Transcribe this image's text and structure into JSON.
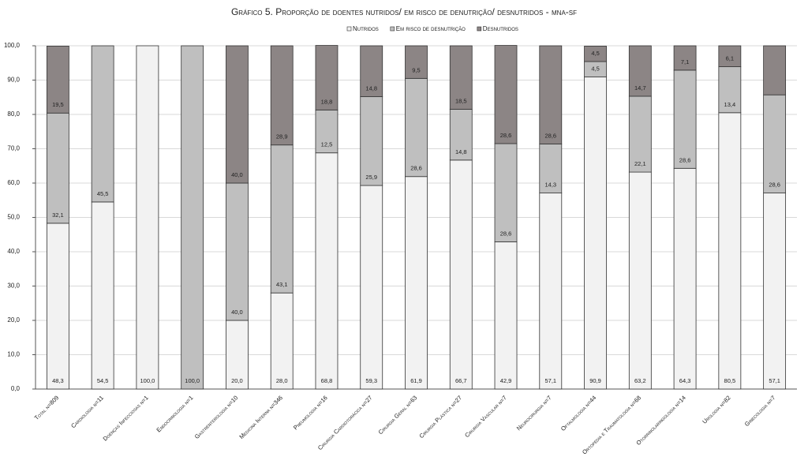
{
  "chart_data": {
    "type": "stacked_bar",
    "title": "Gráfico 5. Proporção de doentes nutridos/ em risco de denutrição/ desnutridos - mna-sf",
    "categories": [
      "Total n=809",
      "Cardiologia n=11",
      "Doenças Infecciosas n=1",
      "Endocrinologia n=1",
      "Gastrenterologia n=10",
      "Medicina Interna n=346",
      "Pneumologia n=16",
      "Cirurgia Cardiotorácica n=27",
      "Cirurgia Geral n=63",
      "Cirurgia Plástica n=27",
      "Cirurgia Vascular n=7",
      "Neurocirurgia n=7",
      "Oftalmologia n=44",
      "Ortopedia e Traumatologia n=68",
      "Otorrinolaringologia n=14",
      "Urologia n=82",
      "Ginecologia n=7"
    ],
    "series": [
      {
        "name": "Nutridos",
        "color": "#f2f2f2",
        "values": [
          48.3,
          54.5,
          100,
          null,
          20,
          28,
          68.8,
          59.3,
          61.9,
          66.7,
          42.9,
          57.1,
          90.9,
          63.2,
          64.3,
          80.5,
          57.1
        ],
        "value_labels": [
          "48,3",
          "54,5",
          "100,0",
          null,
          "20,0",
          "28,0",
          "68,8",
          "59,3",
          "61,9",
          "66,7",
          "42,9",
          "57,1",
          "90,9",
          "63,2",
          "64,3",
          "80,5",
          "57,1"
        ]
      },
      {
        "name": "Em risco de desnutrição",
        "color": "#bfbfbf",
        "values": [
          32.1,
          45.5,
          null,
          100,
          40,
          43.1,
          12.5,
          25.9,
          28.6,
          14.8,
          28.6,
          14.3,
          4.5,
          22.1,
          28.6,
          13.4,
          28.6
        ],
        "value_labels": [
          "32,1",
          "45,5",
          null,
          "100,0",
          "40,0",
          "43,1",
          "12,5",
          "25,9",
          "28,6",
          "14,8",
          "28,6",
          "14,3",
          "4,5",
          "22,1",
          "28,6",
          "13,4",
          "28,6"
        ]
      },
      {
        "name": "Desnutridos",
        "color": "#8c8585",
        "values": [
          19.5,
          null,
          null,
          null,
          40,
          28.9,
          18.8,
          14.8,
          9.5,
          18.5,
          28.6,
          28.6,
          4.5,
          14.7,
          7.1,
          6.1,
          14.3
        ],
        "value_labels": [
          "19,5",
          null,
          null,
          null,
          "40,0",
          "28,9",
          "18,8",
          "14,8",
          "9,5",
          "18,5",
          "28,6",
          "28,6",
          "4,5",
          "14,7",
          "7,1",
          "6,1",
          null
        ]
      }
    ],
    "ylim": [
      0,
      100
    ],
    "yticks": [
      {
        "value": 0,
        "label": "0,0"
      },
      {
        "value": 10,
        "label": "10,0"
      },
      {
        "value": 20,
        "label": "20,0"
      },
      {
        "value": 30,
        "label": "30,0"
      },
      {
        "value": 40,
        "label": "40,0"
      },
      {
        "value": 50,
        "label": "50,0"
      },
      {
        "value": 60,
        "label": "60,0"
      },
      {
        "value": 70,
        "label": "70,0"
      },
      {
        "value": 80,
        "label": "80,0"
      },
      {
        "value": 90,
        "label": "90,0"
      },
      {
        "value": 100,
        "label": "100,0"
      }
    ],
    "grid": true
  }
}
